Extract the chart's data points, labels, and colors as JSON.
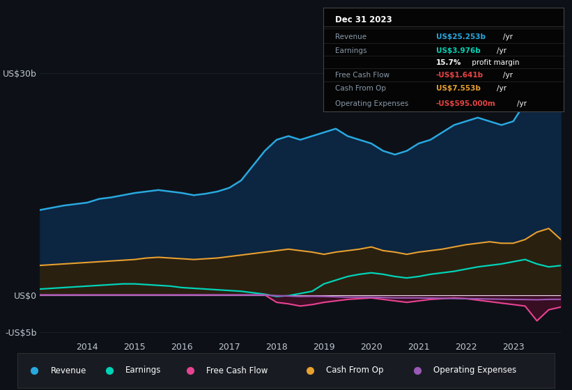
{
  "background_color": "#0d1117",
  "plot_bg_color": "#0d1117",
  "years": [
    2013.0,
    2013.25,
    2013.5,
    2013.75,
    2014.0,
    2014.25,
    2014.5,
    2014.75,
    2015.0,
    2015.25,
    2015.5,
    2015.75,
    2016.0,
    2016.25,
    2016.5,
    2016.75,
    2017.0,
    2017.25,
    2017.5,
    2017.75,
    2018.0,
    2018.25,
    2018.5,
    2018.75,
    2019.0,
    2019.25,
    2019.5,
    2019.75,
    2020.0,
    2020.25,
    2020.5,
    2020.75,
    2021.0,
    2021.25,
    2021.5,
    2021.75,
    2022.0,
    2022.25,
    2022.5,
    2022.75,
    2023.0,
    2023.25,
    2023.5,
    2023.75,
    2024.0
  ],
  "revenue": [
    11.5,
    11.8,
    12.1,
    12.3,
    12.5,
    13.0,
    13.2,
    13.5,
    13.8,
    14.0,
    14.2,
    14.0,
    13.8,
    13.5,
    13.7,
    14.0,
    14.5,
    15.5,
    17.5,
    19.5,
    21.0,
    21.5,
    21.0,
    21.5,
    22.0,
    22.5,
    21.5,
    21.0,
    20.5,
    19.5,
    19.0,
    19.5,
    20.5,
    21.0,
    22.0,
    23.0,
    23.5,
    24.0,
    23.5,
    23.0,
    23.5,
    26.0,
    29.0,
    27.5,
    25.253
  ],
  "earnings": [
    0.8,
    0.9,
    1.0,
    1.1,
    1.2,
    1.3,
    1.4,
    1.5,
    1.5,
    1.4,
    1.3,
    1.2,
    1.0,
    0.9,
    0.8,
    0.7,
    0.6,
    0.5,
    0.3,
    0.1,
    -0.2,
    -0.1,
    0.2,
    0.5,
    1.5,
    2.0,
    2.5,
    2.8,
    3.0,
    2.8,
    2.5,
    2.3,
    2.5,
    2.8,
    3.0,
    3.2,
    3.5,
    3.8,
    4.0,
    4.2,
    4.5,
    4.8,
    4.2,
    3.8,
    3.976
  ],
  "free_cash_flow": [
    0.0,
    0.0,
    0.0,
    0.0,
    0.0,
    0.0,
    0.0,
    0.0,
    0.0,
    0.0,
    0.0,
    0.0,
    0.0,
    0.0,
    0.0,
    0.0,
    0.0,
    0.0,
    0.0,
    0.0,
    -1.0,
    -1.2,
    -1.5,
    -1.3,
    -1.0,
    -0.8,
    -0.6,
    -0.5,
    -0.4,
    -0.6,
    -0.8,
    -1.0,
    -0.8,
    -0.6,
    -0.5,
    -0.4,
    -0.5,
    -0.7,
    -0.9,
    -1.1,
    -1.3,
    -1.5,
    -3.5,
    -2.0,
    -1.641
  ],
  "cash_from_op": [
    4.0,
    4.1,
    4.2,
    4.3,
    4.4,
    4.5,
    4.6,
    4.7,
    4.8,
    5.0,
    5.1,
    5.0,
    4.9,
    4.8,
    4.9,
    5.0,
    5.2,
    5.4,
    5.6,
    5.8,
    6.0,
    6.2,
    6.0,
    5.8,
    5.5,
    5.8,
    6.0,
    6.2,
    6.5,
    6.0,
    5.8,
    5.5,
    5.8,
    6.0,
    6.2,
    6.5,
    6.8,
    7.0,
    7.2,
    7.0,
    7.0,
    7.5,
    8.5,
    9.0,
    7.553
  ],
  "operating_expenses": [
    0.0,
    0.0,
    0.0,
    0.0,
    0.0,
    0.0,
    0.0,
    0.0,
    0.0,
    0.0,
    0.0,
    0.0,
    0.0,
    0.0,
    0.0,
    0.0,
    0.0,
    0.0,
    0.0,
    0.0,
    -0.1,
    -0.15,
    -0.2,
    -0.18,
    -0.2,
    -0.25,
    -0.3,
    -0.3,
    -0.3,
    -0.35,
    -0.4,
    -0.4,
    -0.4,
    -0.42,
    -0.45,
    -0.48,
    -0.5,
    -0.52,
    -0.55,
    -0.57,
    -0.6,
    -0.62,
    -0.65,
    -0.6,
    -0.595
  ],
  "revenue_color": "#29a8e0",
  "earnings_color": "#00d4b8",
  "free_cash_flow_color": "#e84393",
  "cash_from_op_color": "#e8a030",
  "operating_expenses_color": "#9b59b6",
  "ylim": [
    -6,
    32
  ],
  "ytick_labels": [
    "-US$5b",
    "US$0",
    "US$30b"
  ],
  "ytick_vals": [
    -5,
    0,
    30
  ],
  "xticks": [
    2014,
    2015,
    2016,
    2017,
    2018,
    2019,
    2020,
    2021,
    2022,
    2023
  ],
  "grid_color": "#2a3a4a",
  "text_color": "#c0c8d0",
  "legend_items": [
    {
      "label": "Revenue",
      "color": "#29a8e0"
    },
    {
      "label": "Earnings",
      "color": "#00d4b8"
    },
    {
      "label": "Free Cash Flow",
      "color": "#e84393"
    },
    {
      "label": "Cash From Op",
      "color": "#e8a030"
    },
    {
      "label": "Operating Expenses",
      "color": "#9b59b6"
    }
  ],
  "tooltip": {
    "title": "Dec 31 2023",
    "rows": [
      {
        "label": "Revenue",
        "value": "US$25.253b",
        "unit": "/yr",
        "color": "#29a8e0"
      },
      {
        "label": "Earnings",
        "value": "US$3.976b",
        "unit": "/yr",
        "color": "#00d4b8"
      },
      {
        "label": "",
        "value": "15.7%",
        "unit": " profit margin",
        "color": "white"
      },
      {
        "label": "Free Cash Flow",
        "value": "-US$1.641b",
        "unit": "/yr",
        "color": "#e84343"
      },
      {
        "label": "Cash From Op",
        "value": "US$7.553b",
        "unit": "/yr",
        "color": "#e8a030"
      },
      {
        "label": "Operating Expenses",
        "value": "-US$595.000m",
        "unit": "/yr",
        "color": "#e84343"
      }
    ]
  }
}
